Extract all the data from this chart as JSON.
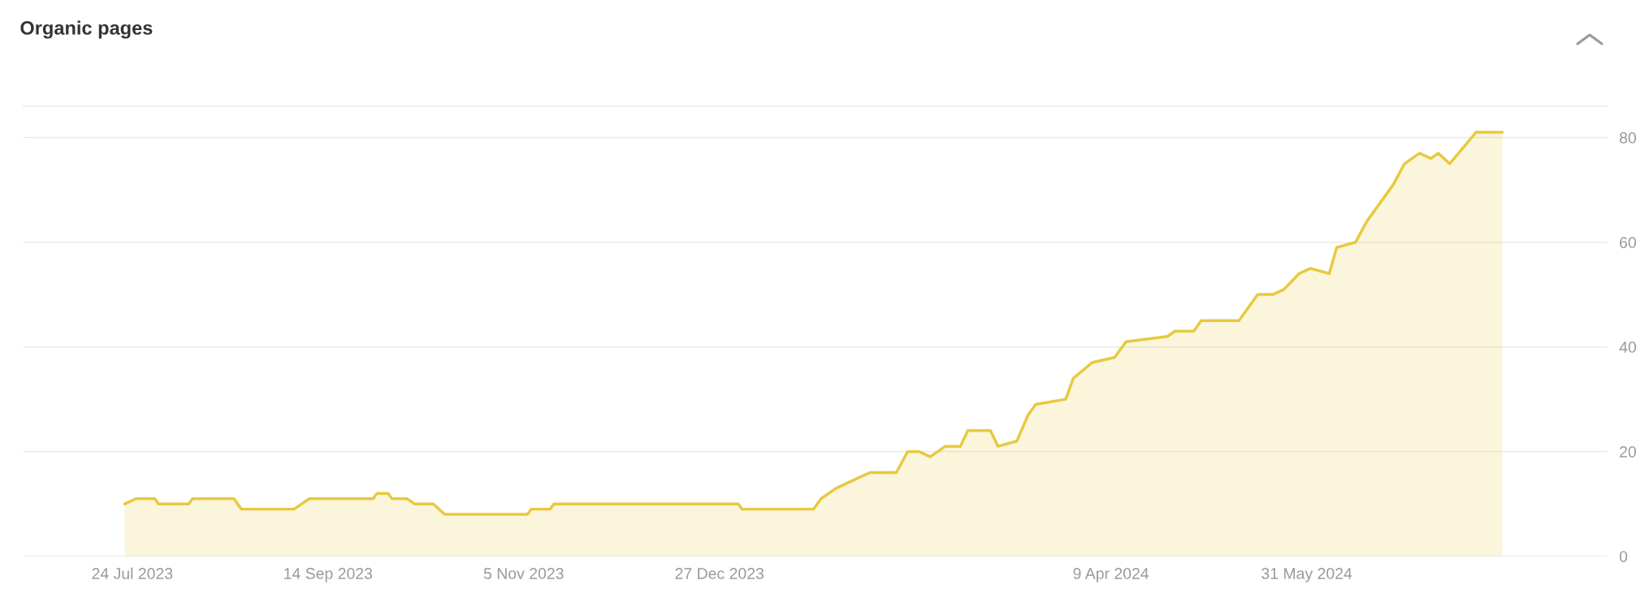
{
  "chart_data": {
    "type": "area",
    "title": "Organic pages",
    "x": [
      "2023-07-22",
      "2023-07-25",
      "2023-07-30",
      "2023-07-31",
      "2023-08-08",
      "2023-08-09",
      "2023-08-20",
      "2023-08-22",
      "2023-09-05",
      "2023-09-07",
      "2023-09-09",
      "2023-09-26",
      "2023-09-27",
      "2023-09-30",
      "2023-10-01",
      "2023-10-05",
      "2023-10-07",
      "2023-10-12",
      "2023-10-15",
      "2023-11-06",
      "2023-11-07",
      "2023-11-12",
      "2023-11-13",
      "2024-01-01",
      "2024-01-02",
      "2024-01-21",
      "2024-01-23",
      "2024-01-27",
      "2024-02-02",
      "2024-02-05",
      "2024-02-12",
      "2024-02-15",
      "2024-02-18",
      "2024-02-21",
      "2024-02-25",
      "2024-02-29",
      "2024-03-02",
      "2024-03-08",
      "2024-03-10",
      "2024-03-15",
      "2024-03-18",
      "2024-03-20",
      "2024-03-28",
      "2024-03-30",
      "2024-04-04",
      "2024-04-10",
      "2024-04-13",
      "2024-04-24",
      "2024-04-26",
      "2024-05-01",
      "2024-05-03",
      "2024-05-13",
      "2024-05-18",
      "2024-05-22",
      "2024-05-25",
      "2024-05-29",
      "2024-06-01",
      "2024-06-06",
      "2024-06-08",
      "2024-06-13",
      "2024-06-16",
      "2024-06-18",
      "2024-06-23",
      "2024-06-26",
      "2024-06-30",
      "2024-07-03",
      "2024-07-05",
      "2024-07-08",
      "2024-07-15",
      "2024-07-22"
    ],
    "series": [
      {
        "color": "#e8c93f",
        "values": [
          10,
          11,
          11,
          10,
          10,
          11,
          11,
          9,
          9,
          10,
          11,
          11,
          12,
          12,
          11,
          11,
          10,
          10,
          8,
          8,
          9,
          9,
          10,
          10,
          9,
          9,
          11,
          13,
          15,
          16,
          16,
          20,
          20,
          19,
          21,
          21,
          24,
          24,
          21,
          22,
          27,
          29,
          30,
          34,
          37,
          38,
          41,
          42,
          43,
          43,
          45,
          45,
          50,
          50,
          51,
          54,
          55,
          54,
          59,
          60,
          64,
          66,
          71,
          75,
          77,
          76,
          77,
          75,
          81,
          81
        ]
      }
    ],
    "xlim": [
      "2023-06-25",
      "2024-08-19"
    ],
    "xticks": [
      {
        "value": "2023-07-24",
        "label": "24 Jul 2023"
      },
      {
        "value": "2023-09-14",
        "label": "14 Sep 2023"
      },
      {
        "value": "2023-11-05",
        "label": "5 Nov 2023"
      },
      {
        "value": "2023-12-27",
        "label": "27 Dec 2023"
      },
      {
        "value": "2024-04-09",
        "label": "9 Apr 2024"
      },
      {
        "value": "2024-05-31",
        "label": "31 May 2024"
      }
    ],
    "ylim": [
      0,
      86
    ],
    "yticks": [
      0,
      20,
      40,
      60,
      80
    ],
    "grid": "y",
    "legend": false
  }
}
